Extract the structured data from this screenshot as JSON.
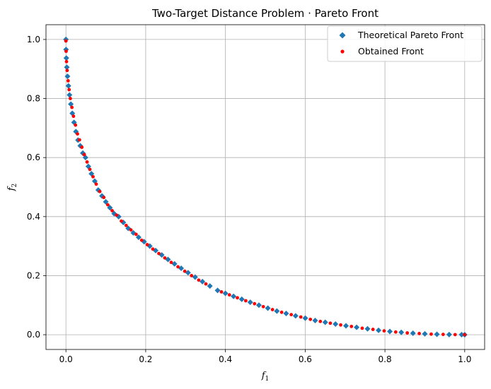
{
  "chart_data": {
    "type": "scatter",
    "title": "Two-Target Distance Problem · Pareto Front",
    "xlabel": {
      "main": "f",
      "sub": "1"
    },
    "ylabel": {
      "main": "f",
      "sub": "2"
    },
    "xlim": [
      -0.05,
      1.05
    ],
    "ylim": [
      -0.05,
      1.05
    ],
    "x_ticks": [
      0.0,
      0.2,
      0.4,
      0.6,
      0.8,
      1.0
    ],
    "y_ticks": [
      0.0,
      0.2,
      0.4,
      0.6,
      0.8,
      1.0
    ],
    "x_tick_labels": [
      "0.0",
      "0.2",
      "0.4",
      "0.6",
      "0.8",
      "1.0"
    ],
    "y_tick_labels": [
      "0.0",
      "0.2",
      "0.4",
      "0.6",
      "0.8",
      "1.0"
    ],
    "grid": true,
    "legend_position": "top-right",
    "series": [
      {
        "name": "Theoretical Pareto Front",
        "marker": "diamond",
        "color": "#1f77b4",
        "points": [
          [
            0.0,
            1.0
          ],
          [
            0.0003,
            0.966
          ],
          [
            0.001,
            0.937
          ],
          [
            0.0023,
            0.906
          ],
          [
            0.004,
            0.875
          ],
          [
            0.0063,
            0.843
          ],
          [
            0.009,
            0.812
          ],
          [
            0.0123,
            0.781
          ],
          [
            0.016,
            0.75
          ],
          [
            0.0203,
            0.719
          ],
          [
            0.025,
            0.688
          ],
          [
            0.0303,
            0.659
          ],
          [
            0.036,
            0.64
          ],
          [
            0.0423,
            0.615
          ],
          [
            0.049,
            0.6
          ],
          [
            0.0563,
            0.57
          ],
          [
            0.064,
            0.545
          ],
          [
            0.0723,
            0.52
          ],
          [
            0.081,
            0.49
          ],
          [
            0.0903,
            0.47
          ],
          [
            0.1,
            0.45
          ],
          [
            0.1103,
            0.43
          ],
          [
            0.121,
            0.41
          ],
          [
            0.1323,
            0.4
          ],
          [
            0.144,
            0.38
          ],
          [
            0.1563,
            0.36
          ],
          [
            0.169,
            0.345
          ],
          [
            0.1823,
            0.33
          ],
          [
            0.196,
            0.315
          ],
          [
            0.2103,
            0.3
          ],
          [
            0.225,
            0.285
          ],
          [
            0.2403,
            0.27
          ],
          [
            0.256,
            0.255
          ],
          [
            0.2723,
            0.24
          ],
          [
            0.289,
            0.225
          ],
          [
            0.3063,
            0.21
          ],
          [
            0.324,
            0.195
          ],
          [
            0.3423,
            0.18
          ],
          [
            0.361,
            0.165
          ],
          [
            0.3803,
            0.15
          ],
          [
            0.4,
            0.14
          ],
          [
            0.4203,
            0.13
          ],
          [
            0.441,
            0.12
          ],
          [
            0.4623,
            0.11
          ],
          [
            0.484,
            0.1
          ],
          [
            0.5063,
            0.09
          ],
          [
            0.529,
            0.08
          ],
          [
            0.5523,
            0.072
          ],
          [
            0.576,
            0.064
          ],
          [
            0.6003,
            0.056
          ],
          [
            0.625,
            0.048
          ],
          [
            0.6503,
            0.042
          ],
          [
            0.676,
            0.036
          ],
          [
            0.7023,
            0.03
          ],
          [
            0.729,
            0.025
          ],
          [
            0.7563,
            0.02
          ],
          [
            0.784,
            0.015
          ],
          [
            0.8123,
            0.011
          ],
          [
            0.841,
            0.008
          ],
          [
            0.8703,
            0.005
          ],
          [
            0.9,
            0.003
          ],
          [
            0.9303,
            0.0015
          ],
          [
            0.961,
            0.0005
          ],
          [
            0.9923,
            0.0001
          ],
          [
            1.0,
            0.0
          ]
        ]
      },
      {
        "name": "Obtained Front",
        "marker": "circle",
        "color": "#ff0000",
        "points": [
          [
            0.0,
            0.995
          ],
          [
            0.0005,
            0.96
          ],
          [
            0.0015,
            0.925
          ],
          [
            0.003,
            0.895
          ],
          [
            0.0055,
            0.86
          ],
          [
            0.008,
            0.83
          ],
          [
            0.011,
            0.8
          ],
          [
            0.015,
            0.77
          ],
          [
            0.019,
            0.74
          ],
          [
            0.024,
            0.71
          ],
          [
            0.029,
            0.68
          ],
          [
            0.034,
            0.66
          ],
          [
            0.04,
            0.635
          ],
          [
            0.046,
            0.61
          ],
          [
            0.053,
            0.585
          ],
          [
            0.06,
            0.56
          ],
          [
            0.068,
            0.535
          ],
          [
            0.076,
            0.51
          ],
          [
            0.085,
            0.485
          ],
          [
            0.095,
            0.465
          ],
          [
            0.105,
            0.44
          ],
          [
            0.116,
            0.42
          ],
          [
            0.127,
            0.405
          ],
          [
            0.139,
            0.385
          ],
          [
            0.151,
            0.37
          ],
          [
            0.163,
            0.355
          ],
          [
            0.176,
            0.34
          ],
          [
            0.19,
            0.32
          ],
          [
            0.204,
            0.305
          ],
          [
            0.218,
            0.29
          ],
          [
            0.233,
            0.275
          ],
          [
            0.248,
            0.26
          ],
          [
            0.264,
            0.245
          ],
          [
            0.281,
            0.23
          ],
          [
            0.298,
            0.215
          ],
          [
            0.315,
            0.2
          ],
          [
            0.333,
            0.185
          ],
          [
            0.351,
            0.172
          ],
          [
            0.39,
            0.145
          ],
          [
            0.41,
            0.135
          ],
          [
            0.43,
            0.125
          ],
          [
            0.451,
            0.115
          ],
          [
            0.473,
            0.105
          ],
          [
            0.495,
            0.095
          ],
          [
            0.518,
            0.085
          ],
          [
            0.541,
            0.076
          ],
          [
            0.565,
            0.068
          ],
          [
            0.589,
            0.06
          ],
          [
            0.613,
            0.052
          ],
          [
            0.638,
            0.045
          ],
          [
            0.663,
            0.039
          ],
          [
            0.689,
            0.033
          ],
          [
            0.716,
            0.028
          ],
          [
            0.743,
            0.022
          ],
          [
            0.77,
            0.018
          ],
          [
            0.798,
            0.013
          ],
          [
            0.827,
            0.009
          ],
          [
            0.856,
            0.006
          ],
          [
            0.886,
            0.004
          ],
          [
            0.916,
            0.002
          ],
          [
            0.946,
            0.001
          ],
          [
            0.976,
            0.0003
          ],
          [
            1.0,
            0.0
          ]
        ]
      }
    ]
  }
}
